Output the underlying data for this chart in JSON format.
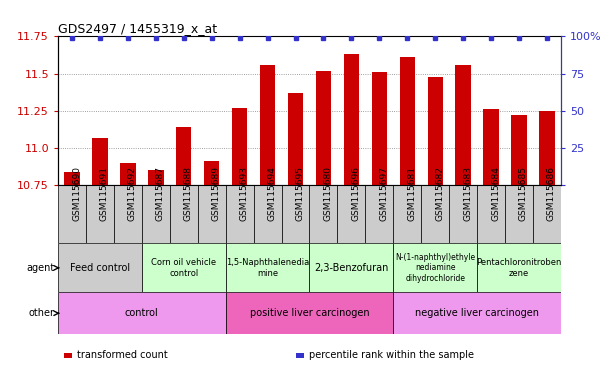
{
  "title": "GDS2497 / 1455319_x_at",
  "samples": [
    "GSM115690",
    "GSM115691",
    "GSM115692",
    "GSM115687",
    "GSM115688",
    "GSM115689",
    "GSM115693",
    "GSM115694",
    "GSM115695",
    "GSM115680",
    "GSM115696",
    "GSM115697",
    "GSM115681",
    "GSM115682",
    "GSM115683",
    "GSM115684",
    "GSM115685",
    "GSM115686"
  ],
  "bar_values": [
    10.84,
    11.07,
    10.9,
    10.85,
    11.14,
    10.91,
    11.27,
    11.56,
    11.37,
    11.52,
    11.63,
    11.51,
    11.61,
    11.48,
    11.56,
    11.26,
    11.22,
    11.25
  ],
  "percentile_values": [
    99,
    99,
    99,
    99,
    99,
    99,
    99,
    99,
    99,
    99,
    99,
    99,
    99,
    99,
    99,
    99,
    99,
    99
  ],
  "bar_color": "#cc0000",
  "percentile_color": "#3333cc",
  "ylim_left": [
    10.75,
    11.75
  ],
  "ylim_right": [
    0,
    100
  ],
  "yticks_left": [
    10.75,
    11.0,
    11.25,
    11.5,
    11.75
  ],
  "yticks_right": [
    0,
    25,
    50,
    75,
    100
  ],
  "agent_groups": [
    {
      "label": "Feed control",
      "start": 0,
      "end": 3,
      "color": "#cccccc",
      "fontsize": 7
    },
    {
      "label": "Corn oil vehicle\ncontrol",
      "start": 3,
      "end": 6,
      "color": "#ccffcc",
      "fontsize": 6
    },
    {
      "label": "1,5-Naphthalenedia\nmine",
      "start": 6,
      "end": 9,
      "color": "#ccffcc",
      "fontsize": 6
    },
    {
      "label": "2,3-Benzofuran",
      "start": 9,
      "end": 12,
      "color": "#ccffcc",
      "fontsize": 7
    },
    {
      "label": "N-(1-naphthyl)ethyle\nnediamine\ndihydrochloride",
      "start": 12,
      "end": 15,
      "color": "#ccffcc",
      "fontsize": 5.5
    },
    {
      "label": "Pentachloronitroben\nzene",
      "start": 15,
      "end": 18,
      "color": "#ccffcc",
      "fontsize": 6
    }
  ],
  "other_groups": [
    {
      "label": "control",
      "start": 0,
      "end": 6,
      "color": "#ee99ee"
    },
    {
      "label": "positive liver carcinogen",
      "start": 6,
      "end": 12,
      "color": "#ee66bb"
    },
    {
      "label": "negative liver carcinogen",
      "start": 12,
      "end": 18,
      "color": "#ee99ee"
    }
  ],
  "legend_items": [
    {
      "color": "#cc0000",
      "label": "transformed count"
    },
    {
      "color": "#3333cc",
      "label": "percentile rank within the sample"
    }
  ],
  "xtick_bg_color": "#cccccc",
  "xtick_fontsize": 6.5
}
